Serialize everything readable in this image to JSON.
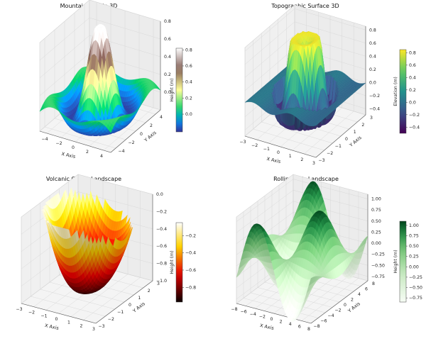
{
  "chart_data": [
    {
      "type": "surface",
      "title": "Mountain Terrain 3D",
      "xlabel": "X Axis",
      "ylabel": "Y Axis",
      "zlabel": "",
      "colorbar_label": "Height (m)",
      "colormap": "terrain",
      "surface_function": "sin(sqrt(x^2+y^2)) / sqrt(x^2+y^2) style mountain (radial sinc, scaled)",
      "x_ticks": [
        "−4",
        "−2",
        "0",
        "2",
        "4"
      ],
      "y_ticks": [
        "−4",
        "−2",
        "0",
        "2",
        "4"
      ],
      "z_ticks": [
        "0.0",
        "0.2",
        "0.4",
        "0.6",
        "0.8"
      ],
      "colorbar_ticks": [
        "0.0",
        "0.2",
        "0.4",
        "0.6",
        "0.8"
      ],
      "xlim": [
        -5,
        5
      ],
      "ylim": [
        -5,
        5
      ],
      "zlim": [
        -0.2,
        0.8
      ],
      "colorbar_range": [
        -0.22,
        0.82
      ]
    },
    {
      "type": "surface",
      "title": "Topographic Surface 3D",
      "xlabel": "X Axis",
      "ylabel": "Y Axis",
      "zlabel": "",
      "colorbar_label": "Elevation (m)",
      "colormap": "viridis",
      "surface_function": "radial sinc surface with rings",
      "x_ticks": [
        "−3",
        "−2",
        "−1",
        "0",
        "1",
        "2",
        "3"
      ],
      "y_ticks": [
        "−3",
        "−2",
        "−1",
        "0",
        "1",
        "2",
        "3"
      ],
      "z_ticks": [
        "−0.4",
        "−0.2",
        "0.0",
        "0.2",
        "0.4",
        "0.6",
        "0.8"
      ],
      "colorbar_ticks": [
        "−0.4",
        "−0.2",
        "0.0",
        "0.2",
        "0.4",
        "0.6",
        "0.8"
      ],
      "xlim": [
        -3,
        3
      ],
      "ylim": [
        -3,
        3
      ],
      "zlim": [
        -0.5,
        0.85
      ],
      "colorbar_range": [
        -0.5,
        0.85
      ]
    },
    {
      "type": "surface",
      "title": "Volcanic Crater Landscape",
      "xlabel": "X Axis",
      "ylabel": "Y Axis",
      "zlabel": "",
      "colorbar_label": "Height (m)",
      "colormap": "hot",
      "surface_function": "crater surface with central hole",
      "x_ticks": [
        "−3",
        "−2",
        "−1",
        "0",
        "1",
        "2",
        "3"
      ],
      "y_ticks": [
        "−3",
        "−2",
        "−1",
        "0",
        "1",
        "2",
        "3"
      ],
      "z_ticks": [
        "−1.0",
        "−0.8",
        "−0.6",
        "−0.4",
        "−0.2",
        "0.0"
      ],
      "colorbar_ticks": [
        "−0.8",
        "−0.6",
        "−0.4",
        "−0.2"
      ],
      "xlim": [
        -3,
        3
      ],
      "ylim": [
        -3,
        3
      ],
      "zlim": [
        -1.0,
        0.0
      ],
      "colorbar_range": [
        -0.97,
        -0.05
      ]
    },
    {
      "type": "surface",
      "title": "Rolling Hills Landscape",
      "xlabel": "X Axis",
      "ylabel": "Y Axis",
      "zlabel": "",
      "colorbar_label": "Height (m)",
      "colormap": "Greens",
      "surface_function": "sin(x) * cos(y) style rolling hills",
      "x_ticks": [
        "−8",
        "−6",
        "−4",
        "−2",
        "0",
        "2",
        "4",
        "6",
        "8"
      ],
      "y_ticks": [
        "−8",
        "−6",
        "−4",
        "−2",
        "0",
        "2",
        "4",
        "6",
        "8"
      ],
      "z_ticks": [
        "−0.75",
        "−0.50",
        "−0.25",
        "0.00",
        "0.25",
        "0.50",
        "0.75",
        "1.00"
      ],
      "colorbar_ticks": [
        "−0.75",
        "−0.50",
        "−0.25",
        "0.00",
        "0.25",
        "0.50",
        "0.75",
        "1.00"
      ],
      "xlim": [
        -8,
        8
      ],
      "ylim": [
        -8,
        8
      ],
      "zlim": [
        -0.85,
        1.1
      ],
      "colorbar_range": [
        -0.85,
        1.1
      ]
    }
  ]
}
